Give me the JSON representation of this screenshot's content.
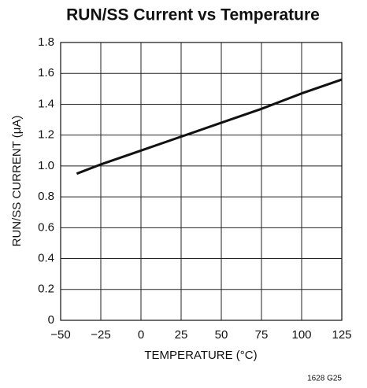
{
  "chart_data": {
    "type": "line",
    "title": "RUN/SS Current vs Temperature",
    "x_label": "TEMPERATURE (°C)",
    "y_label": "RUN/SS CURRENT (μA)",
    "annotation": "1628 G25",
    "x": [
      -40,
      -25,
      0,
      25,
      50,
      75,
      100,
      125
    ],
    "series": [
      {
        "name": "RUN/SS Current",
        "color": "#111111",
        "values": [
          0.95,
          1.01,
          1.1,
          1.19,
          1.28,
          1.37,
          1.47,
          1.56
        ]
      }
    ],
    "xlim": [
      -50,
      125
    ],
    "xticks": [
      {
        "value": -50,
        "label": "−50"
      },
      {
        "value": -25,
        "label": "−25"
      },
      0,
      25,
      50,
      75,
      100,
      125
    ],
    "ylim": [
      0,
      1.8
    ],
    "yticks": [
      0,
      0.2,
      0.4,
      0.6,
      0.8,
      {
        "value": 1,
        "label": "1.0"
      },
      1.2,
      1.4,
      1.6,
      1.8
    ],
    "grid": true
  }
}
